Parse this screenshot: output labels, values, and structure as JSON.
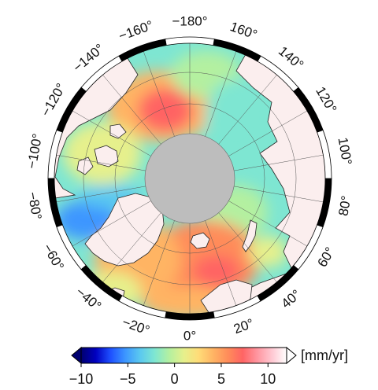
{
  "longitude_labels": [
    {
      "text": "0°"
    },
    {
      "text": "20°"
    },
    {
      "text": "40°"
    },
    {
      "text": "60°"
    },
    {
      "text": "80°"
    },
    {
      "text": "100°"
    },
    {
      "text": "120°"
    },
    {
      "text": "140°"
    },
    {
      "text": "160°"
    },
    {
      "text": "−180°"
    },
    {
      "text": "−160°"
    },
    {
      "text": "−140°"
    },
    {
      "text": "−120°"
    },
    {
      "text": "−100°"
    },
    {
      "text": "−80°"
    },
    {
      "text": "−60°"
    },
    {
      "text": "−40°"
    },
    {
      "text": "−20°"
    }
  ],
  "colorbar": {
    "unit": "[mm/yr]",
    "min": -10,
    "max": 12,
    "extend": "both",
    "ticks": [
      {
        "value": -10,
        "label": "−10"
      },
      {
        "value": -5,
        "label": "−5"
      },
      {
        "value": 0,
        "label": "0"
      },
      {
        "value": 5,
        "label": "5"
      },
      {
        "value": 10,
        "label": "10"
      }
    ],
    "colors": [
      "#000070",
      "#0000c0",
      "#1e50ff",
      "#3c96ff",
      "#5ac8f0",
      "#7ee6d2",
      "#b4f0a0",
      "#e6f08c",
      "#ffdc78",
      "#ffb464",
      "#ff8c5a",
      "#ff6464",
      "#ff96a0",
      "#ffc8d2",
      "#ffffff"
    ]
  },
  "colors": {
    "land": "#fbeeee",
    "ocean_mid": "#e8e88c",
    "pole_hole": "#bdbdbd",
    "coast": "#222222"
  }
}
